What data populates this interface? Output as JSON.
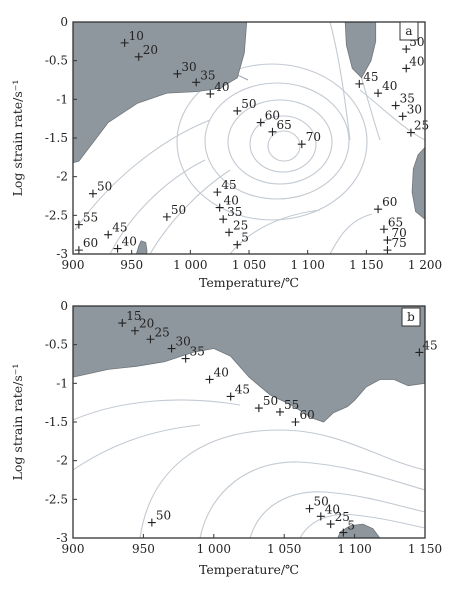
{
  "chart_data": [
    {
      "type": "contour",
      "panel_label": "a",
      "xlabel": "Temperature/℃",
      "ylabel": "Log strain rate/s⁻¹",
      "xlim": [
        900,
        1200
      ],
      "ylim": [
        -3,
        0
      ],
      "x_ticks": [
        900,
        950,
        1000,
        1050,
        1100,
        1150,
        1200
      ],
      "y_ticks": [
        0,
        -0.5,
        -1,
        -1.5,
        -2,
        -2.5,
        -3
      ],
      "x_tick_labels": [
        "900",
        "950",
        "1 000",
        "1 050",
        "1 100",
        "1 150",
        "1 200"
      ],
      "y_tick_labels": [
        "0",
        "-0.5",
        "-1",
        "-1.5",
        "-2",
        "-2.5",
        "-3"
      ],
      "shaded_regions": [
        {
          "name": "top-left instability",
          "polygon": [
            [
              900,
              0
            ],
            [
              1048,
              0
            ],
            [
              1046,
              -0.4
            ],
            [
              1040,
              -0.72
            ],
            [
              1025,
              -0.86
            ],
            [
              1005,
              -0.9
            ],
            [
              980,
              -0.92
            ],
            [
              955,
              -1.05
            ],
            [
              930,
              -1.3
            ],
            [
              905,
              -1.8
            ],
            [
              900,
              -1.82
            ]
          ]
        },
        {
          "name": "top-right instability",
          "polygon": [
            [
              1132,
              0
            ],
            [
              1158,
              0
            ],
            [
              1158,
              -0.25
            ],
            [
              1154,
              -0.5
            ],
            [
              1146,
              -0.72
            ],
            [
              1138,
              -0.6
            ],
            [
              1133,
              -0.3
            ]
          ]
        },
        {
          "name": "right-edge instability",
          "polygon": [
            [
              1200,
              -1.62
            ],
            [
              1200,
              -2.55
            ],
            [
              1192,
              -2.45
            ],
            [
              1189,
              -2.2
            ],
            [
              1190,
              -1.9
            ],
            [
              1194,
              -1.72
            ]
          ]
        },
        {
          "name": "bottom small instability",
          "polygon": [
            [
              954,
              -3
            ],
            [
              956,
              -2.9
            ],
            [
              958,
              -2.83
            ],
            [
              962,
              -2.85
            ],
            [
              963,
              -2.95
            ],
            [
              963,
              -3
            ]
          ]
        }
      ],
      "contour_points": [
        {
          "label": "10",
          "x": 944,
          "y": -0.27
        },
        {
          "label": "20",
          "x": 956,
          "y": -0.45
        },
        {
          "label": "30",
          "x": 989,
          "y": -0.67
        },
        {
          "label": "35",
          "x": 1005,
          "y": -0.78
        },
        {
          "label": "40",
          "x": 1017,
          "y": -0.93
        },
        {
          "label": "50",
          "x": 1040,
          "y": -1.15
        },
        {
          "label": "60",
          "x": 1060,
          "y": -1.3
        },
        {
          "label": "65",
          "x": 1070,
          "y": -1.42
        },
        {
          "label": "70",
          "x": 1095,
          "y": -1.58
        },
        {
          "label": "45",
          "x": 1144,
          "y": -0.8
        },
        {
          "label": "50",
          "x": 1184,
          "y": -0.35
        },
        {
          "label": "40",
          "x": 1184,
          "y": -0.6
        },
        {
          "label": "40",
          "x": 1160,
          "y": -0.92
        },
        {
          "label": "35",
          "x": 1175,
          "y": -1.08
        },
        {
          "label": "30",
          "x": 1181,
          "y": -1.22
        },
        {
          "label": "25",
          "x": 1188,
          "y": -1.43
        },
        {
          "label": "50",
          "x": 917,
          "y": -2.22
        },
        {
          "label": "55",
          "x": 905,
          "y": -2.62
        },
        {
          "label": "45",
          "x": 930,
          "y": -2.75
        },
        {
          "label": "60",
          "x": 905,
          "y": -2.95
        },
        {
          "label": "40",
          "x": 938,
          "y": -2.93
        },
        {
          "label": "50",
          "x": 980,
          "y": -2.52
        },
        {
          "label": "45",
          "x": 1023,
          "y": -2.2
        },
        {
          "label": "40",
          "x": 1025,
          "y": -2.4
        },
        {
          "label": "35",
          "x": 1028,
          "y": -2.55
        },
        {
          "label": "25",
          "x": 1033,
          "y": -2.72
        },
        {
          "label": "5",
          "x": 1040,
          "y": -2.88
        },
        {
          "label": "60",
          "x": 1160,
          "y": -2.42
        },
        {
          "label": "65",
          "x": 1165,
          "y": -2.68
        },
        {
          "label": "70",
          "x": 1168,
          "y": -2.82
        },
        {
          "label": "75",
          "x": 1168,
          "y": -2.95
        }
      ]
    },
    {
      "type": "contour",
      "panel_label": "b",
      "xlabel": "Temperature/℃",
      "ylabel": "Log strain rate/s⁻¹",
      "xlim": [
        900,
        1150
      ],
      "ylim": [
        -3,
        0
      ],
      "x_ticks": [
        900,
        950,
        1000,
        1050,
        1100,
        1150
      ],
      "y_ticks": [
        0,
        -0.5,
        -1,
        -1.5,
        -2,
        -2.5,
        -3
      ],
      "x_tick_labels": [
        "900",
        "950",
        "1 000",
        "1 050",
        "1 100",
        "1 150"
      ],
      "y_tick_labels": [
        "0",
        "-0.5",
        "-1",
        "-1.5",
        "-2",
        "-2.5",
        "-3"
      ],
      "shaded_regions": [
        {
          "name": "upper instability",
          "polygon": [
            [
              900,
              0
            ],
            [
              1150,
              0
            ],
            [
              1150,
              -1.0
            ],
            [
              1138,
              -1.03
            ],
            [
              1128,
              -0.95
            ],
            [
              1118,
              -0.95
            ],
            [
              1108,
              -1.05
            ],
            [
              1100,
              -1.22
            ],
            [
              1095,
              -1.3
            ],
            [
              1085,
              -1.38
            ],
            [
              1078,
              -1.5
            ],
            [
              1070,
              -1.45
            ],
            [
              1055,
              -1.28
            ],
            [
              1040,
              -1.15
            ],
            [
              1025,
              -0.92
            ],
            [
              1012,
              -0.65
            ],
            [
              1000,
              -0.55
            ],
            [
              985,
              -0.6
            ],
            [
              965,
              -0.72
            ],
            [
              945,
              -0.78
            ],
            [
              925,
              -0.82
            ],
            [
              905,
              -0.9
            ],
            [
              900,
              -0.92
            ]
          ]
        },
        {
          "name": "bottom instability",
          "polygon": [
            [
              1088,
              -3
            ],
            [
              1090,
              -2.92
            ],
            [
              1097,
              -2.84
            ],
            [
              1106,
              -2.82
            ],
            [
              1113,
              -2.88
            ],
            [
              1118,
              -3
            ]
          ]
        }
      ],
      "contour_points": [
        {
          "label": "15",
          "x": 935,
          "y": -0.22
        },
        {
          "label": "20",
          "x": 944,
          "y": -0.32
        },
        {
          "label": "25",
          "x": 955,
          "y": -0.43
        },
        {
          "label": "30",
          "x": 970,
          "y": -0.55
        },
        {
          "label": "35",
          "x": 980,
          "y": -0.68
        },
        {
          "label": "40",
          "x": 997,
          "y": -0.95
        },
        {
          "label": "45",
          "x": 1012,
          "y": -1.17
        },
        {
          "label": "50",
          "x": 1032,
          "y": -1.32
        },
        {
          "label": "55",
          "x": 1047,
          "y": -1.37
        },
        {
          "label": "60",
          "x": 1058,
          "y": -1.5
        },
        {
          "label": "45",
          "x": 1146,
          "y": -0.6
        },
        {
          "label": "50",
          "x": 956,
          "y": -2.8
        },
        {
          "label": "50",
          "x": 1068,
          "y": -2.62
        },
        {
          "label": "40",
          "x": 1076,
          "y": -2.72
        },
        {
          "label": "25",
          "x": 1083,
          "y": -2.82
        },
        {
          "label": "5",
          "x": 1092,
          "y": -2.93
        }
      ]
    }
  ]
}
